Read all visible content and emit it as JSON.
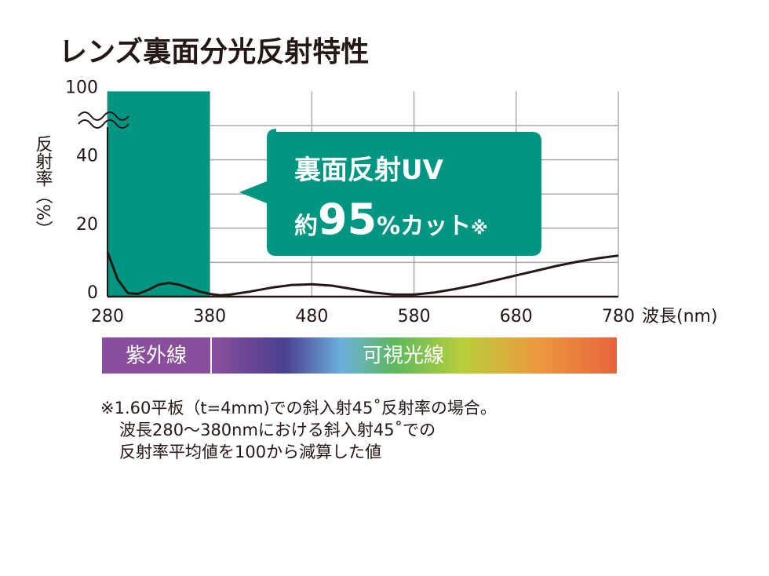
{
  "chart_data": {
    "type": "line",
    "title": "レンズ裏面分光反射特性",
    "y_label": "反射率（%）",
    "x_label": "波長(nm)",
    "xlim": [
      280,
      780
    ],
    "xticks": [
      280,
      380,
      480,
      580,
      680,
      780
    ],
    "ylim": [
      0,
      100
    ],
    "ybreak": [
      50,
      100
    ],
    "yticks": [
      0,
      20,
      40,
      100
    ],
    "ygrid": [
      0,
      10,
      20,
      30,
      40,
      50
    ],
    "grid": true,
    "highlight": {
      "range": [
        280,
        380
      ],
      "color": "#009682"
    },
    "series": [
      {
        "color": "#231815",
        "x": [
          280,
          290,
          300,
          310,
          320,
          330,
          340,
          350,
          360,
          370,
          380,
          390,
          400,
          420,
          440,
          460,
          480,
          500,
          520,
          540,
          560,
          580,
          600,
          620,
          640,
          660,
          680,
          700,
          720,
          740,
          760,
          780
        ],
        "values": [
          13,
          5,
          1,
          0.8,
          2,
          3.5,
          4,
          3.5,
          2.5,
          1.5,
          0.8,
          0.4,
          0.6,
          1.5,
          2.6,
          3.4,
          3.6,
          3.2,
          2.2,
          1.2,
          0.6,
          0.6,
          1.2,
          2.2,
          3.4,
          4.8,
          6.2,
          7.6,
          9,
          10.2,
          11.2,
          12
        ]
      }
    ],
    "callout": {
      "line1": "裏面反射UV",
      "line2": [
        "約",
        "95",
        "%カット",
        "※"
      ]
    },
    "spectrum_labels": [
      "紫外線",
      "可視光線"
    ],
    "footnotes": [
      "※1.60平板（t=4mm)での斜入射45˚反射率の場合。",
      "波長280〜380nmにおける斜入射45˚での",
      "反射率平均値を100から減算した値"
    ]
  }
}
